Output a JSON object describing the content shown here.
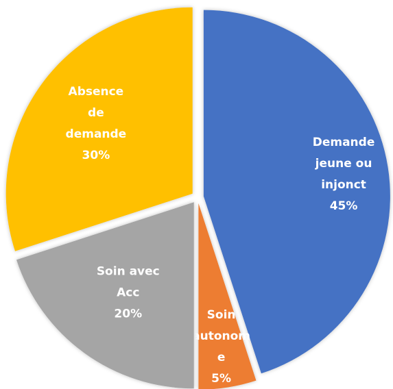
{
  "chart_data": {
    "type": "pie",
    "categories": [
      "Demande jeune ou injonct",
      "Soin autonome",
      "Soin avec Acc",
      "Absence de demande"
    ],
    "values": [
      45,
      5,
      20,
      30
    ],
    "value_labels": [
      "45%",
      "5%",
      "20%",
      "30%"
    ],
    "colors": [
      "#4472c4",
      "#ed7d31",
      "#a5a5a5",
      "#ffc000"
    ]
  }
}
